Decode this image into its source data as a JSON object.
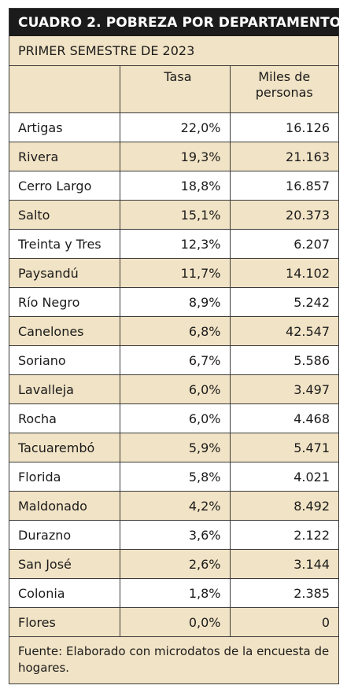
{
  "title": "CUADRO 2. POBREZA POR DEPARTAMENTO",
  "subtitle": "PRIMER SEMESTRE DE 2023",
  "columns": {
    "department": "",
    "rate": "Tasa",
    "people": "Miles de personas"
  },
  "rows": [
    {
      "department": "Artigas",
      "rate": "22,0%",
      "people": "16.126"
    },
    {
      "department": "Rivera",
      "rate": "19,3%",
      "people": "21.163"
    },
    {
      "department": "Cerro Largo",
      "rate": "18,8%",
      "people": "16.857"
    },
    {
      "department": "Salto",
      "rate": "15,1%",
      "people": "20.373"
    },
    {
      "department": "Treinta y Tres",
      "rate": "12,3%",
      "people": "6.207"
    },
    {
      "department": "Paysandú",
      "rate": "11,7%",
      "people": "14.102"
    },
    {
      "department": "Río Negro",
      "rate": "8,9%",
      "people": "5.242"
    },
    {
      "department": "Canelones",
      "rate": "6,8%",
      "people": "42.547"
    },
    {
      "department": "Soriano",
      "rate": "6,7%",
      "people": "5.586"
    },
    {
      "department": "Lavalleja",
      "rate": "6,0%",
      "people": "3.497"
    },
    {
      "department": "Rocha",
      "rate": "6,0%",
      "people": "4.468"
    },
    {
      "department": "Tacuarembó",
      "rate": "5,9%",
      "people": "5.471"
    },
    {
      "department": "Florida",
      "rate": "5,8%",
      "people": "4.021"
    },
    {
      "department": "Maldonado",
      "rate": "4,2%",
      "people": "8.492"
    },
    {
      "department": "Durazno",
      "rate": "3,6%",
      "people": "2.122"
    },
    {
      "department": "San José",
      "rate": "2,6%",
      "people": "3.144"
    },
    {
      "department": "Colonia",
      "rate": "1,8%",
      "people": "2.385"
    },
    {
      "department": "Flores",
      "rate": "0,0%",
      "people": "0"
    }
  ],
  "footer": "Fuente: Elaborado con microdatos de la encuesta de hogares.",
  "colors": {
    "header_bg": "#1b1b1b",
    "beige": "#f1e3c5",
    "border": "#3a3a3a"
  }
}
